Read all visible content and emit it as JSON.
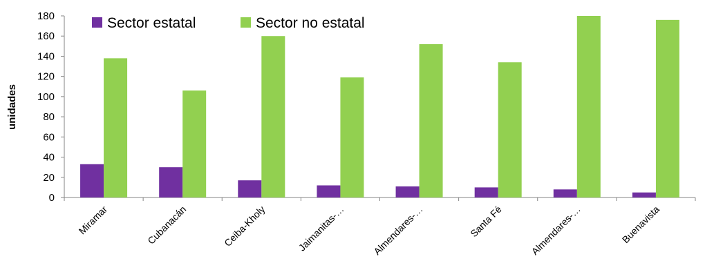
{
  "chart_data": {
    "type": "bar",
    "title": "",
    "xlabel": "",
    "ylabel": "unidades",
    "ylim": [
      0,
      180
    ],
    "yticks": [
      0,
      20,
      40,
      60,
      80,
      100,
      120,
      140,
      160,
      180
    ],
    "grid": false,
    "legend_position": "top-left",
    "categories": [
      "Miramar",
      "Cubanacán",
      "Ceiba-Kholy",
      "Jaimanitas-…",
      "Almendares-…",
      "Santa Fé",
      "Almendares-…",
      "Buenavista"
    ],
    "series": [
      {
        "name": "Sector estatal",
        "color": "#7030A0",
        "values": [
          33,
          30,
          17,
          12,
          11,
          10,
          8,
          5
        ]
      },
      {
        "name": "Sector no estatal",
        "color": "#92D050",
        "values": [
          138,
          106,
          160,
          119,
          152,
          134,
          180,
          176
        ]
      }
    ]
  }
}
